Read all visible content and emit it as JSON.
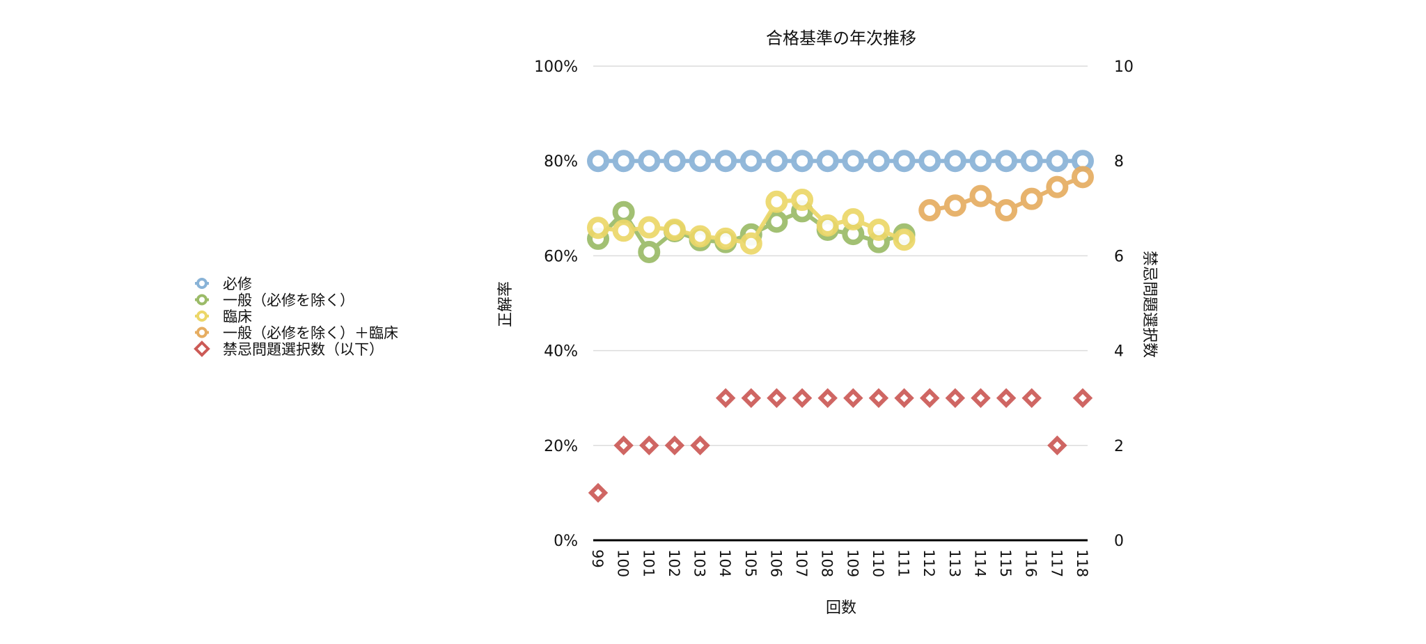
{
  "chart_data": {
    "type": "line",
    "title": "合格基準の年次推移",
    "xlabel": "回数",
    "ylabel": "正解率",
    "y2label": "禁忌問題選択数",
    "categories": [
      "99",
      "100",
      "101",
      "102",
      "103",
      "104",
      "105",
      "106",
      "107",
      "108",
      "109",
      "110",
      "111",
      "112",
      "113",
      "114",
      "115",
      "116",
      "117",
      "118"
    ],
    "ylim": [
      0,
      100
    ],
    "yticks": [
      "0%",
      "20%",
      "40%",
      "60%",
      "80%",
      "100%"
    ],
    "y2lim": [
      0,
      10
    ],
    "y2ticks": [
      "0",
      "2",
      "4",
      "6",
      "8",
      "10"
    ],
    "grid": true,
    "legend_position": "left",
    "series": [
      {
        "name": "必修",
        "axis": "left",
        "marker": "circle",
        "color": "#89b3d7",
        "values": [
          80,
          80,
          80,
          80,
          80,
          80,
          80,
          80,
          80,
          80,
          80,
          80,
          80,
          80,
          80,
          80,
          80,
          80,
          80,
          80
        ]
      },
      {
        "name": "一般（必修を除く）",
        "axis": "left",
        "marker": "circle",
        "color": "#9bbb68",
        "values": [
          63.6,
          69.2,
          60.8,
          65.2,
          63.3,
          62.9,
          64.5,
          67.2,
          69.4,
          65.5,
          64.6,
          62.9,
          64.5,
          null,
          null,
          null,
          null,
          null,
          null,
          null
        ]
      },
      {
        "name": "臨床",
        "axis": "left",
        "marker": "circle",
        "color": "#ecd769",
        "values": [
          65.9,
          65.3,
          66.0,
          65.5,
          64.1,
          63.6,
          62.6,
          71.4,
          71.8,
          66.4,
          67.7,
          65.5,
          63.4,
          null,
          null,
          null,
          null,
          null,
          null,
          null
        ]
      },
      {
        "name": "一般（必修を除く）＋臨床",
        "axis": "left",
        "marker": "circle",
        "color": "#e6ad61",
        "values": [
          null,
          null,
          null,
          null,
          null,
          null,
          null,
          null,
          null,
          null,
          null,
          null,
          null,
          69.6,
          70.6,
          72.6,
          69.6,
          72.0,
          74.5,
          76.6
        ]
      },
      {
        "name": "禁忌問題選択数（以下）",
        "axis": "right",
        "marker": "diamond",
        "color": "#cc5a56",
        "values": [
          1,
          2,
          2,
          2,
          2,
          3,
          3,
          3,
          3,
          3,
          3,
          3,
          3,
          3,
          3,
          3,
          3,
          3,
          2,
          3
        ]
      }
    ]
  }
}
